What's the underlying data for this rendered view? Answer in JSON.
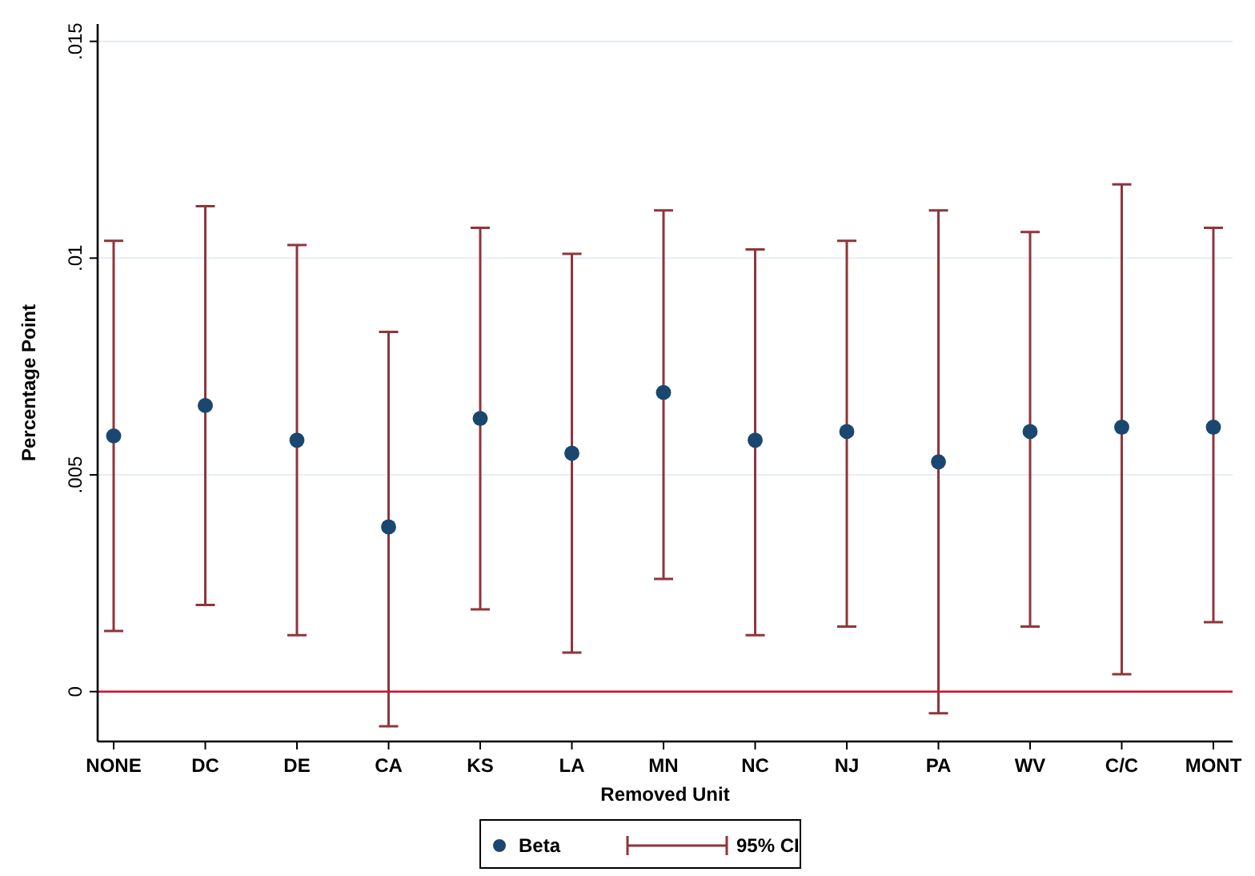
{
  "chart_data": {
    "type": "scatter",
    "xlabel": "Removed Unit",
    "ylabel": "Percentage Point",
    "categories": [
      "NONE",
      "DC",
      "DE",
      "CA",
      "KS",
      "LA",
      "MN",
      "NC",
      "NJ",
      "PA",
      "WV",
      "C/C",
      "MONT"
    ],
    "series": [
      {
        "name": "Beta",
        "color": "#1a476f",
        "values": [
          0.0059,
          0.0066,
          0.0058,
          0.0038,
          0.0063,
          0.0055,
          0.0069,
          0.0058,
          0.006,
          0.0053,
          0.006,
          0.0061,
          0.0061
        ],
        "errors": [
          [
            0.0014,
            0.0104
          ],
          [
            0.002,
            0.0112
          ],
          [
            0.0013,
            0.0103
          ],
          [
            -0.0008,
            0.0083
          ],
          [
            0.0019,
            0.0107
          ],
          [
            0.0009,
            0.0101
          ],
          [
            0.0026,
            0.0111
          ],
          [
            0.0013,
            0.0102
          ],
          [
            0.0015,
            0.0104
          ],
          [
            -0.0005,
            0.0111
          ],
          [
            0.0015,
            0.0106
          ],
          [
            0.0004,
            0.0117
          ],
          [
            0.0016,
            0.0107
          ]
        ]
      }
    ],
    "annotations": [
      "95% CI"
    ],
    "ylim": [
      -0.00115,
      0.0154
    ],
    "yticks": [
      {
        "value": 0,
        "label": "0"
      },
      {
        "value": 0.005,
        "label": ".005"
      },
      {
        "value": 0.01,
        "label": ".01"
      },
      {
        "value": 0.015,
        "label": ".015"
      }
    ],
    "grid": "y",
    "legend": "bottom",
    "marker": "circle",
    "ref_lines": [
      {
        "axis": "y",
        "value": 0,
        "color": "#c8102e"
      }
    ]
  }
}
